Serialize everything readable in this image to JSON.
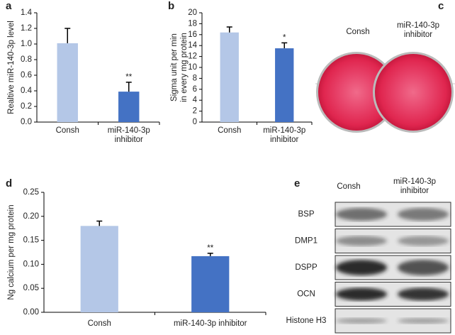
{
  "chart_data": [
    {
      "type": "bar",
      "panel_label": "a",
      "y_label": [
        "Realtive miR-140-3p level"
      ],
      "categories": [
        "Consh",
        "miR-140-3p inhibitor"
      ],
      "values": [
        1.01,
        0.39
      ],
      "errors": [
        0.19,
        0.12
      ],
      "colors": [
        "#b4c7e7",
        "#4472c4"
      ],
      "significance": [
        null,
        "**"
      ],
      "ylim": [
        0,
        1.4
      ],
      "yticks": [
        {
          "value": 0,
          "label": "0.0"
        },
        0.2,
        0.4,
        0.6,
        0.8,
        {
          "value": 1,
          "label": "1.0"
        },
        1.2,
        1.4
      ]
    },
    {
      "type": "bar",
      "panel_label": "b",
      "y_label": [
        "Sigma unit per min",
        "in every mg protein"
      ],
      "categories": [
        "Consh",
        "miR-140-3p inhibitor"
      ],
      "values": [
        16.4,
        13.5
      ],
      "errors": [
        1.0,
        1.0
      ],
      "colors": [
        "#b4c7e7",
        "#4472c4"
      ],
      "significance": [
        null,
        "*"
      ],
      "ylim": [
        0,
        20
      ],
      "yticks": [
        0,
        2,
        4,
        6,
        8,
        10,
        12,
        14,
        16,
        18,
        20
      ]
    },
    {
      "type": "bar",
      "panel_label": "d",
      "y_label": [
        "Ng calcium per mg protein"
      ],
      "categories": [
        "Consh",
        "miR-140-3p inhibitor"
      ],
      "values": [
        0.18,
        0.117
      ],
      "errors": [
        0.01,
        0.006
      ],
      "colors": [
        "#b4c7e7",
        "#4472c4"
      ],
      "significance": [
        null,
        "**"
      ],
      "ylim": [
        0,
        0.25
      ],
      "yticks": [
        {
          "value": 0,
          "label": "0.00"
        },
        {
          "value": 0.05,
          "label": "0.05"
        },
        {
          "value": 0.1,
          "label": "0.10"
        },
        {
          "value": 0.15,
          "label": "0.15"
        },
        {
          "value": 0.2,
          "label": "0.20"
        },
        {
          "value": 0.25,
          "label": "0.25"
        }
      ]
    }
  ],
  "images": [
    {
      "panel_label": "c",
      "columns": [
        "Consh",
        "miR-140-3p inhibitor"
      ]
    },
    {
      "panel_label": "e",
      "columns": [
        "Consh",
        "miR-140-3p inhibitor"
      ],
      "rows": [
        "BSP",
        "DMP1",
        "DSPP",
        "OCN",
        "Histone H3"
      ]
    }
  ]
}
